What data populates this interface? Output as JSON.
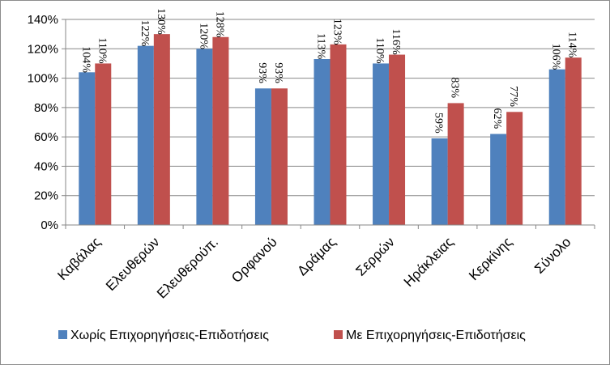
{
  "chart_data": {
    "type": "bar",
    "categories": [
      "Καβάλας",
      "Ελευθερών",
      "Ελευθερούπ.",
      "Ορφανού",
      "Δράμας",
      "Σερρών",
      "Ηράκλειας",
      "Κερκίνης",
      "Σύνολο"
    ],
    "series": [
      {
        "name": "Χωρίς Επιχορηγήσεις-Επιδοτήσεις",
        "color": "#4f81bd",
        "values": [
          104,
          122,
          120,
          93,
          113,
          110,
          59,
          62,
          106
        ],
        "labels": [
          "104%",
          "122%",
          "120%",
          "93%",
          "113%",
          "110%",
          "59%",
          "62%",
          "106%"
        ]
      },
      {
        "name": "Με Επιχορηγήσεις-Επιδοτήσεις",
        "color": "#c0504d",
        "values": [
          110,
          130,
          128,
          93,
          123,
          116,
          83,
          77,
          114
        ],
        "labels": [
          "110%",
          "130%",
          "128%",
          "93%",
          "123%",
          "116%",
          "83%",
          "77%",
          "114%"
        ]
      }
    ],
    "ylim": [
      0,
      140
    ],
    "yticks": [
      0,
      20,
      40,
      60,
      80,
      100,
      120,
      140
    ],
    "ytick_labels": [
      "0%",
      "20%",
      "40%",
      "60%",
      "80%",
      "100%",
      "120%",
      "140%"
    ],
    "grid": true,
    "legend": "bottom"
  }
}
